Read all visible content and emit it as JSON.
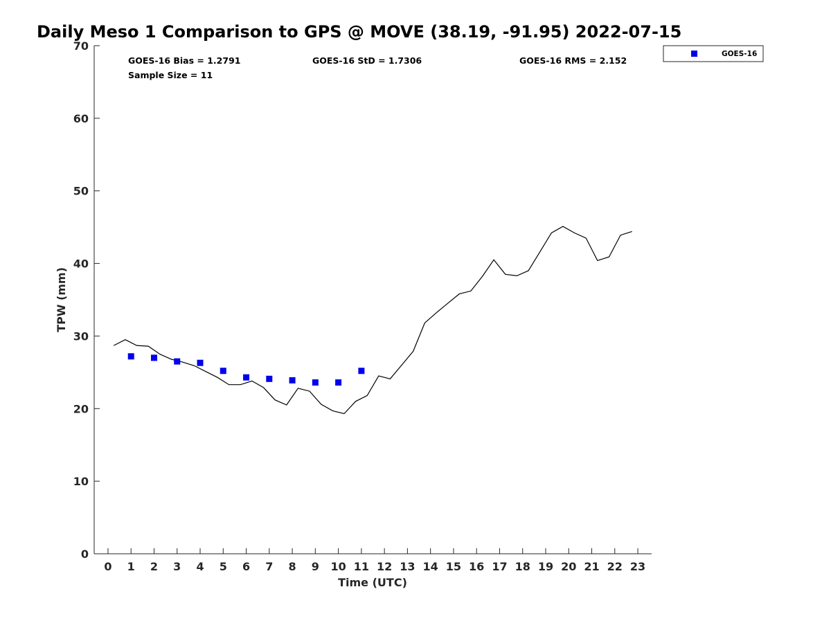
{
  "chart_data": {
    "type": "scatter",
    "title": "Daily Meso 1 Comparison to GPS @ MOVE (38.19, -91.95) 2022-07-15",
    "xlabel": "Time (UTC)",
    "ylabel": "TPW (mm)",
    "xlim": [
      -0.6,
      23.6
    ],
    "ylim": [
      0,
      70
    ],
    "x_ticks": [
      "0",
      "1",
      "2",
      "3",
      "4",
      "5",
      "6",
      "7",
      "8",
      "9",
      "10",
      "11",
      "12",
      "13",
      "14",
      "15",
      "16",
      "17",
      "18",
      "19",
      "20",
      "21",
      "22",
      "23"
    ],
    "y_ticks": [
      "0",
      "10",
      "20",
      "30",
      "40",
      "50",
      "60",
      "70"
    ],
    "grid": false,
    "legend_position": "top-right, outside the axes",
    "annotations": {
      "bias": "GOES-16 Bias = 1.2791",
      "std": "GOES-16 StD = 1.7306",
      "rms": "GOES-16 RMS = 2.152",
      "sample_size": "Sample Size = 11"
    },
    "series": [
      {
        "name": "GOES-16",
        "style": "markers",
        "marker": "square",
        "color": "#0000ee",
        "x": [
          1,
          2,
          3,
          4,
          5,
          6,
          7,
          8,
          9,
          10,
          11
        ],
        "y": [
          27.2,
          27.0,
          26.5,
          26.3,
          25.2,
          24.3,
          24.1,
          23.9,
          23.6,
          23.6,
          25.2
        ]
      },
      {
        "style": "line",
        "color": "#000000",
        "x": [
          0.25,
          0.75,
          1.25,
          1.75,
          2.25,
          2.75,
          3.25,
          3.75,
          4.25,
          4.75,
          5.25,
          5.75,
          6.25,
          6.75,
          7.25,
          7.75,
          8.25,
          8.75,
          9.25,
          9.75,
          10.25,
          10.75,
          11.25,
          11.75,
          12.25,
          12.75,
          13.25,
          13.75,
          14.25,
          14.75,
          15.25,
          15.75,
          16.25,
          16.75,
          17.25,
          17.75,
          18.25,
          18.75,
          19.25,
          19.75,
          20.25,
          20.75,
          21.25,
          21.75,
          22.25,
          22.75
        ],
        "y": [
          28.7,
          29.5,
          28.7,
          28.6,
          27.5,
          26.8,
          26.4,
          25.9,
          25.1,
          24.3,
          23.3,
          23.3,
          23.8,
          22.9,
          21.2,
          20.5,
          22.8,
          22.4,
          20.6,
          19.7,
          19.3,
          21.0,
          21.8,
          24.5,
          24.1,
          26.0,
          27.9,
          31.8,
          33.2,
          34.5,
          35.8,
          36.2,
          38.2,
          40.5,
          38.5,
          38.3,
          39.0,
          41.6,
          44.2,
          45.1,
          44.2,
          43.5,
          40.4,
          40.9,
          43.9,
          44.4
        ]
      }
    ]
  }
}
